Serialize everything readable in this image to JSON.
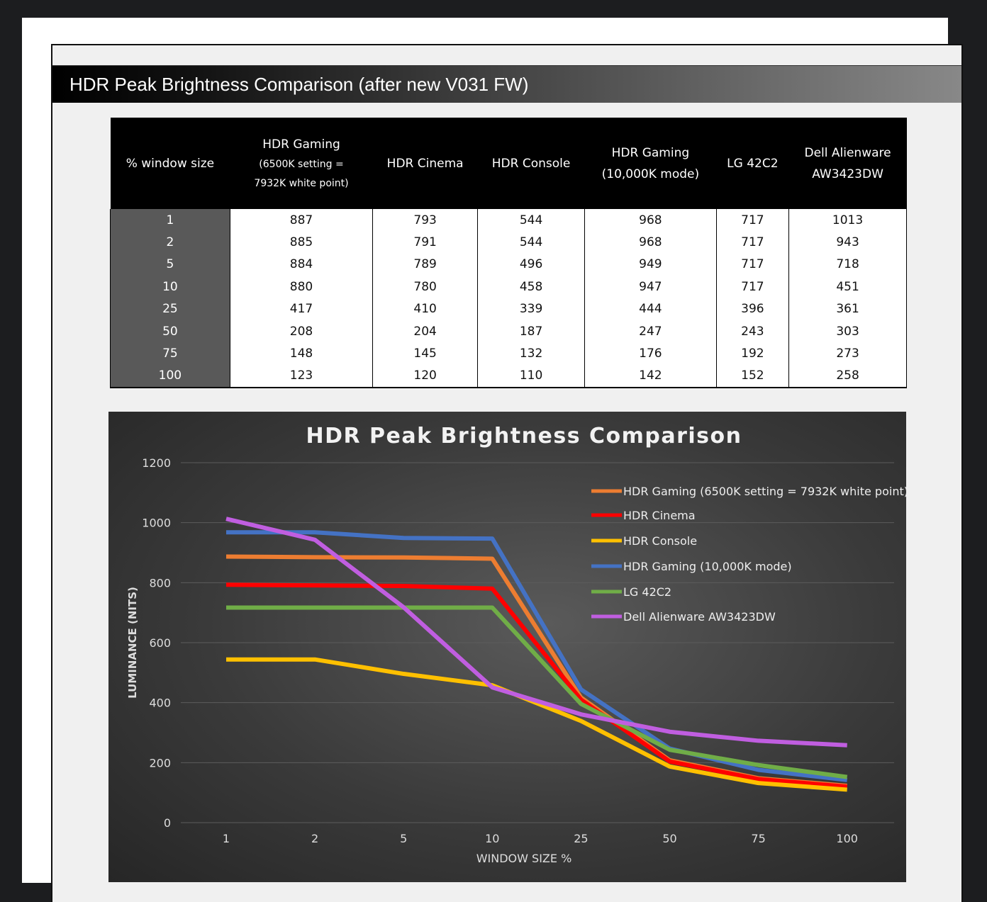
{
  "header": {
    "title": "HDR Peak Brightness Comparison (after new V031 FW)"
  },
  "table": {
    "headers": [
      {
        "main": "% window size",
        "sub": ""
      },
      {
        "main": "HDR Gaming",
        "sub": "(6500K setting = 7932K white point)"
      },
      {
        "main": "HDR Cinema",
        "sub": ""
      },
      {
        "main": "HDR Console",
        "sub": ""
      },
      {
        "main": "HDR Gaming",
        "sub": "(10,000K mode)"
      },
      {
        "main": "LG 42C2",
        "sub": ""
      },
      {
        "main": "Dell Alienware",
        "sub": "AW3423DW"
      }
    ],
    "rows": [
      [
        "1",
        "887",
        "793",
        "544",
        "968",
        "717",
        "1013"
      ],
      [
        "2",
        "885",
        "791",
        "544",
        "968",
        "717",
        "943"
      ],
      [
        "5",
        "884",
        "789",
        "496",
        "949",
        "717",
        "718"
      ],
      [
        "10",
        "880",
        "780",
        "458",
        "947",
        "717",
        "451"
      ],
      [
        "25",
        "417",
        "410",
        "339",
        "444",
        "396",
        "361"
      ],
      [
        "50",
        "208",
        "204",
        "187",
        "247",
        "243",
        "303"
      ],
      [
        "75",
        "148",
        "145",
        "132",
        "176",
        "192",
        "273"
      ],
      [
        "100",
        "123",
        "120",
        "110",
        "142",
        "152",
        "258"
      ]
    ]
  },
  "chart_data": {
    "type": "line",
    "title": "HDR Peak Brightness Comparison",
    "xlabel": "WINDOW SIZE %",
    "ylabel": "LUMINANCE (NITS)",
    "categories": [
      "1",
      "2",
      "5",
      "10",
      "25",
      "50",
      "75",
      "100"
    ],
    "ylim": [
      0,
      1200
    ],
    "yticks": [
      "0",
      "200",
      "400",
      "600",
      "800",
      "1000",
      "1200"
    ],
    "grid": true,
    "legend": "top-right",
    "series": [
      {
        "name": "HDR Gaming (6500K setting = 7932K white point)",
        "color": "#ed7d31",
        "values": [
          887,
          885,
          884,
          880,
          417,
          208,
          148,
          123
        ]
      },
      {
        "name": "HDR Cinema",
        "color": "#ff0000",
        "values": [
          793,
          791,
          789,
          780,
          410,
          204,
          145,
          120
        ]
      },
      {
        "name": "HDR Console",
        "color": "#ffc000",
        "values": [
          544,
          544,
          496,
          458,
          339,
          187,
          132,
          110
        ]
      },
      {
        "name": "HDR Gaming (10,000K mode)",
        "color": "#4472c4",
        "values": [
          968,
          968,
          949,
          947,
          444,
          247,
          176,
          142
        ]
      },
      {
        "name": "LG 42C2",
        "color": "#70ad47",
        "values": [
          717,
          717,
          717,
          717,
          396,
          243,
          192,
          152
        ]
      },
      {
        "name": "Dell Alienware AW3423DW",
        "color": "#c05ee0",
        "values": [
          1013,
          943,
          718,
          451,
          361,
          303,
          273,
          258
        ]
      }
    ]
  }
}
